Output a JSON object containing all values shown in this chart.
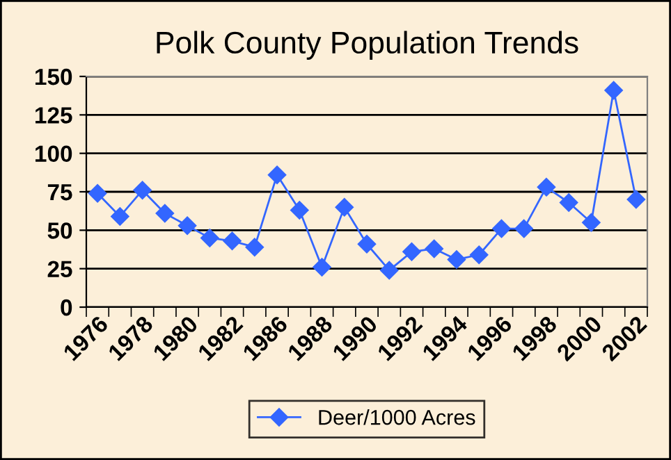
{
  "chart_data": {
    "type": "line",
    "title": "Polk County Population Trends",
    "categories": [
      "1976",
      null,
      "1978",
      null,
      "1980",
      null,
      "1982",
      null,
      "1986",
      null,
      "1988",
      null,
      "1990",
      null,
      "1992",
      null,
      "1994",
      null,
      "1996",
      null,
      "1998",
      null,
      "2000",
      null,
      "2002"
    ],
    "series": [
      {
        "name": "Deer/1000 Acres",
        "color": "#3366ff",
        "values": [
          74,
          59,
          76,
          61,
          53,
          45,
          43,
          39,
          86,
          63,
          26,
          65,
          41,
          24,
          36,
          38,
          31,
          34,
          51,
          51,
          78,
          68,
          55,
          141,
          70
        ]
      }
    ],
    "ylim": [
      0,
      150
    ],
    "yticks": [
      0,
      25,
      50,
      75,
      100,
      125,
      150
    ],
    "grid": "y",
    "legend": "bottom",
    "marker": "diamond",
    "line_style": "solid"
  }
}
